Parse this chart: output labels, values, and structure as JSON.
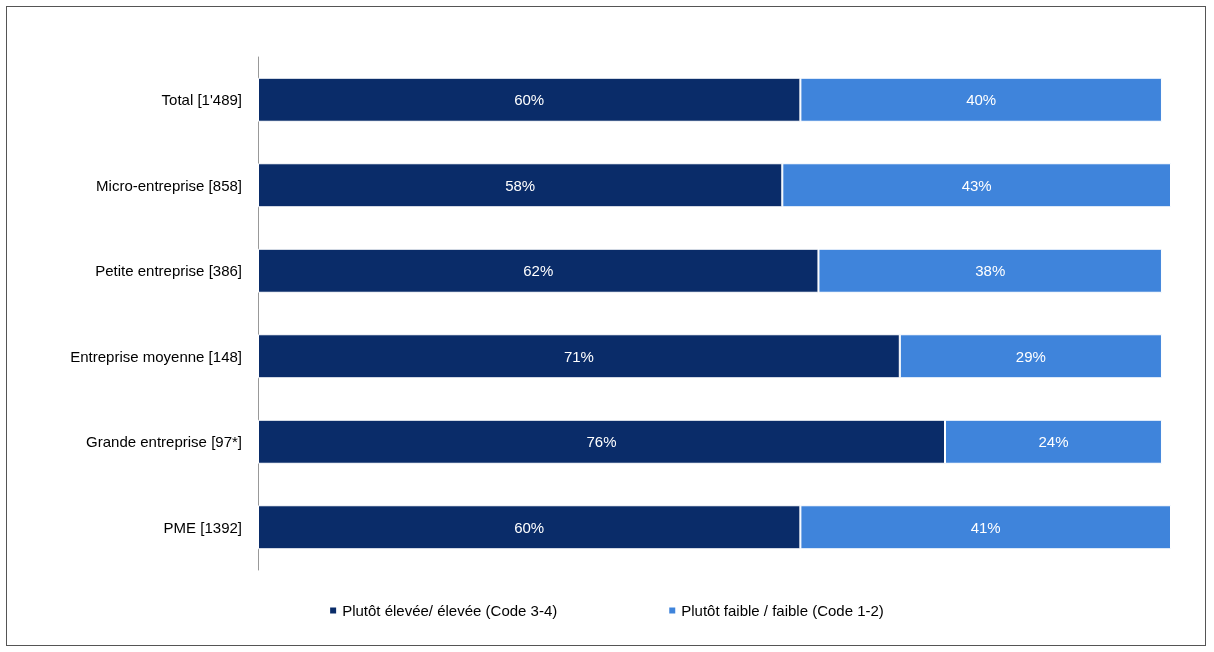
{
  "chart_data": {
    "type": "bar",
    "orientation": "horizontal",
    "stacked": true,
    "categories": [
      "Total [1'489]",
      "Micro-entreprise [858]",
      "Petite entreprise [386]",
      "Entreprise moyenne [148]",
      "Grande entreprise [97*]",
      "PME [1392]"
    ],
    "series": [
      {
        "name": "Plutôt élevée/ élevée (Code 3-4)",
        "color": "#0a2c69",
        "values": [
          60,
          58,
          62,
          71,
          76,
          60
        ],
        "value_labels": [
          "60%",
          "58%",
          "62%",
          "71%",
          "76%",
          "60%"
        ]
      },
      {
        "name": "Plutôt faible / faible (Code 1-2)",
        "color": "#3f84db",
        "values": [
          40,
          43,
          38,
          29,
          24,
          41
        ],
        "value_labels": [
          "40%",
          "43%",
          "38%",
          "29%",
          "24%",
          "41%"
        ]
      }
    ],
    "legend": "bottom"
  }
}
